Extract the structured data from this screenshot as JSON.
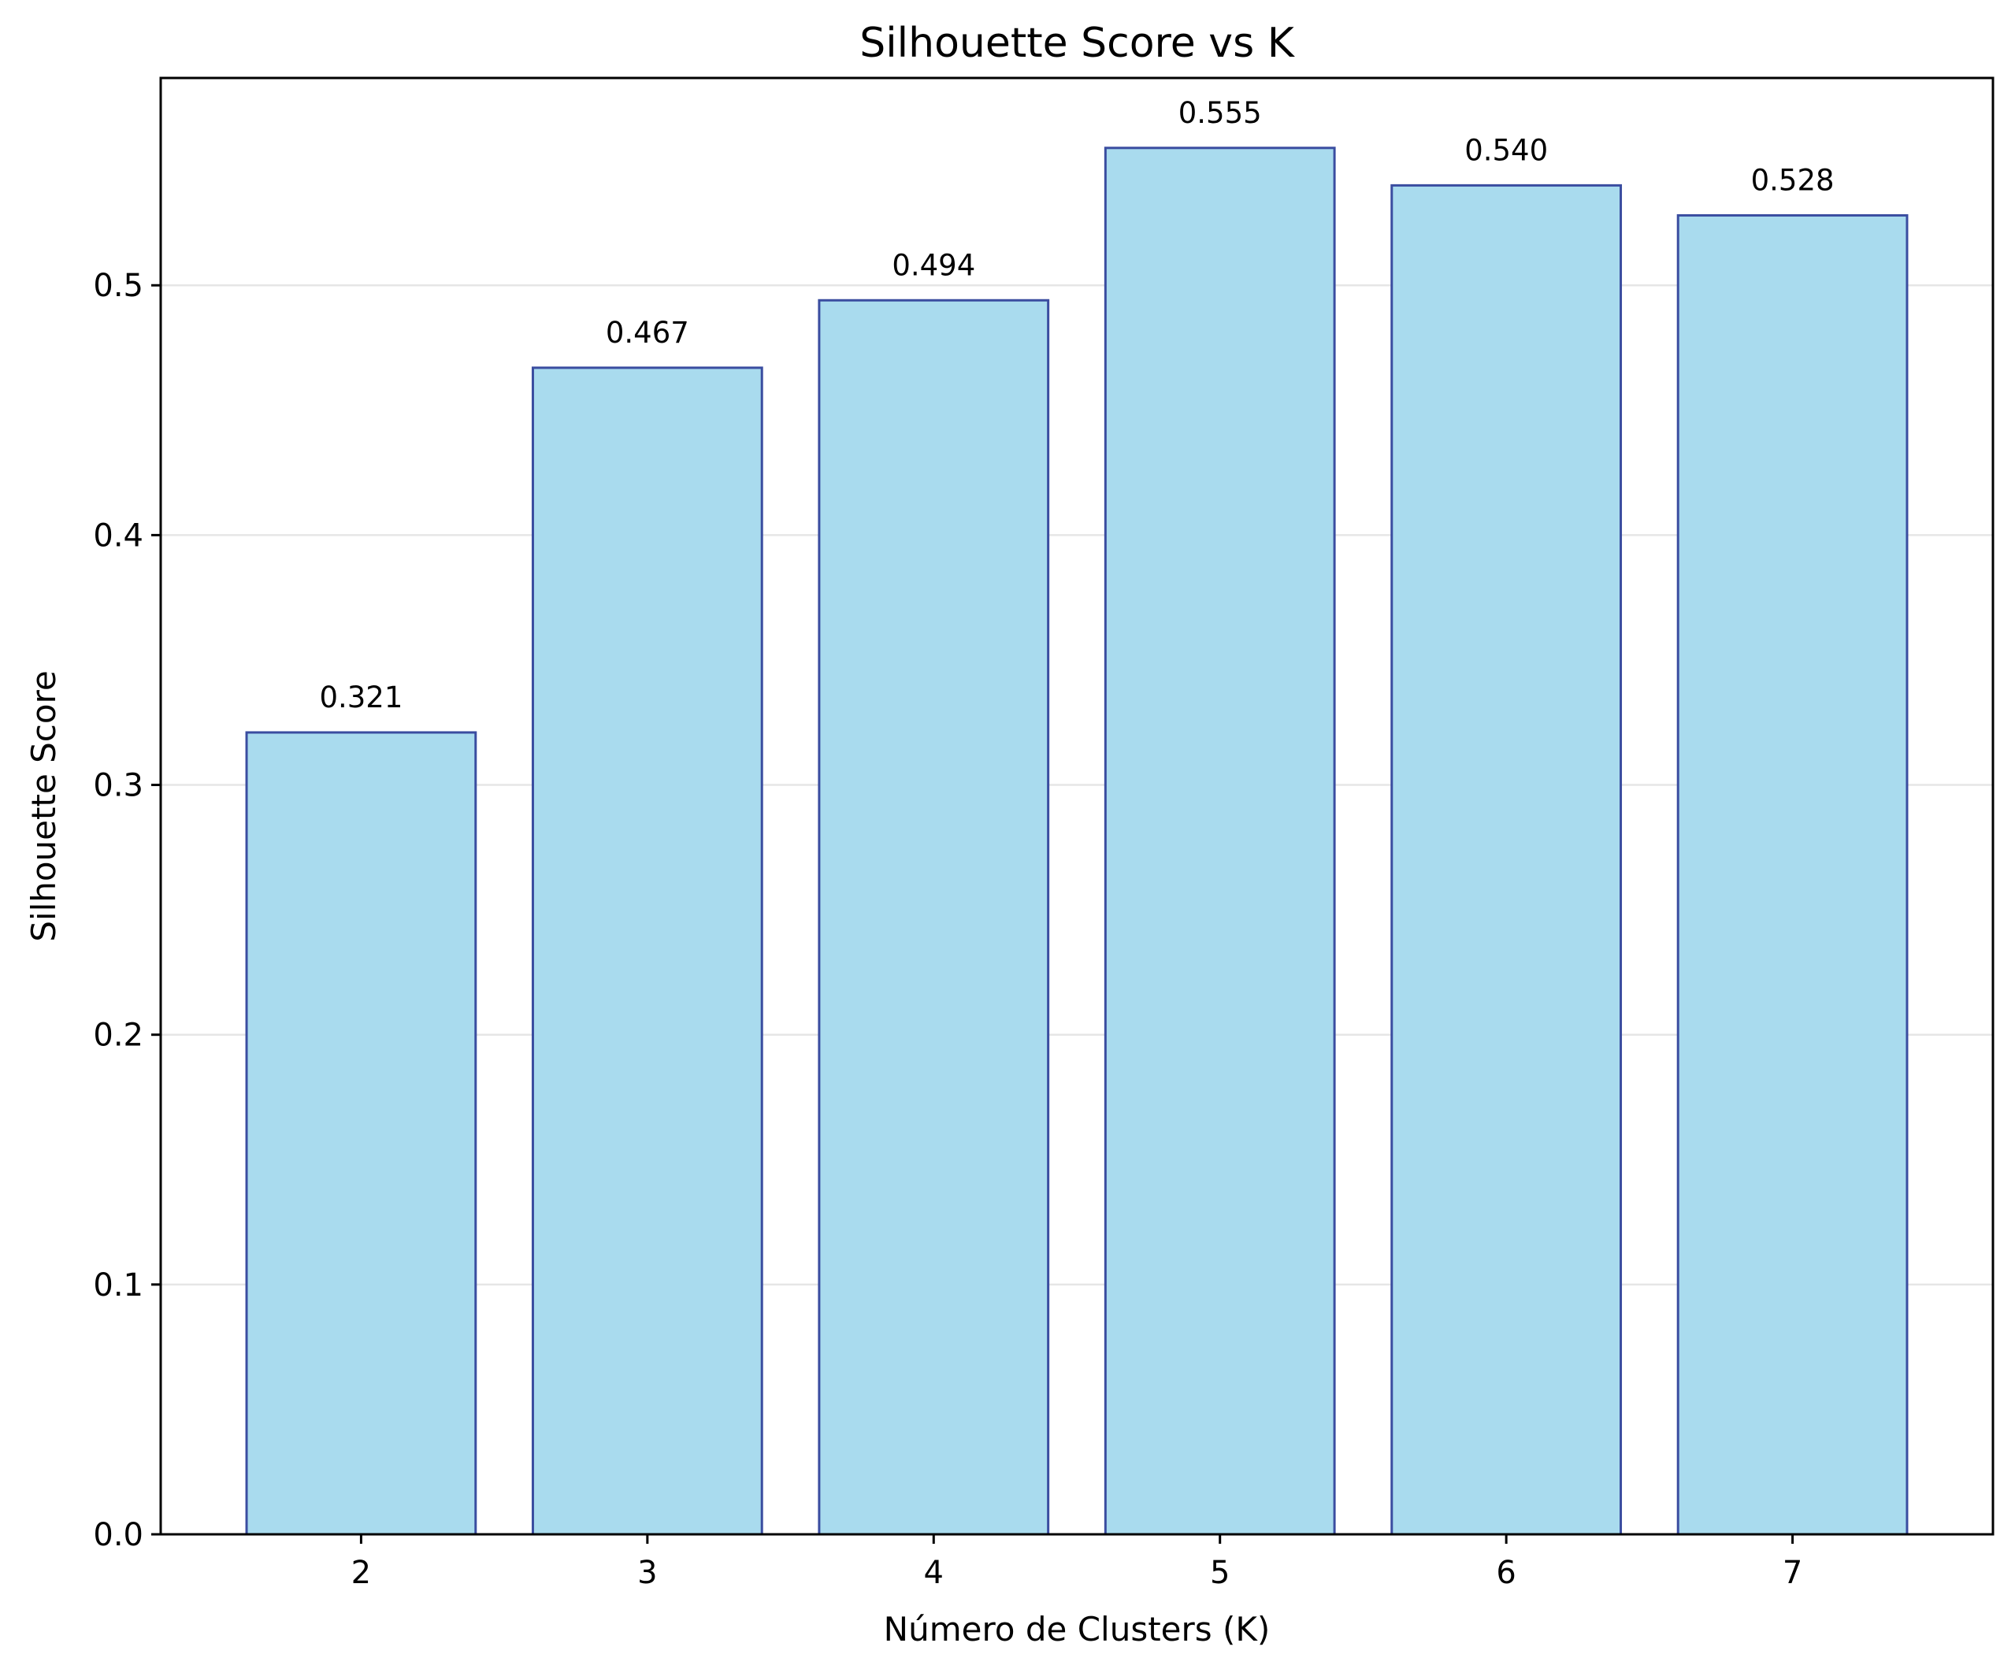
{
  "chart_data": {
    "type": "bar",
    "title": "Silhouette Score vs K",
    "xlabel": "Número de Clusters (K)",
    "ylabel": "Silhouette Score",
    "categories": [
      "2",
      "3",
      "4",
      "5",
      "6",
      "7"
    ],
    "values": [
      0.321,
      0.467,
      0.494,
      0.555,
      0.54,
      0.528
    ],
    "data_labels": [
      "0.321",
      "0.467",
      "0.494",
      "0.555",
      "0.540",
      "0.528"
    ],
    "yticks": [
      0.0,
      0.1,
      0.2,
      0.3,
      0.4,
      0.5
    ],
    "ytick_labels": [
      "0.0",
      "0.1",
      "0.2",
      "0.3",
      "0.4",
      "0.5"
    ],
    "ylim": [
      0,
      0.583
    ],
    "grid": "y-axis only",
    "legend": "none",
    "colors": {
      "bar_fill": "#a9dbee",
      "bar_edge": "#3a4da0",
      "grid": "#e6e6e6",
      "axis": "#000000"
    }
  }
}
